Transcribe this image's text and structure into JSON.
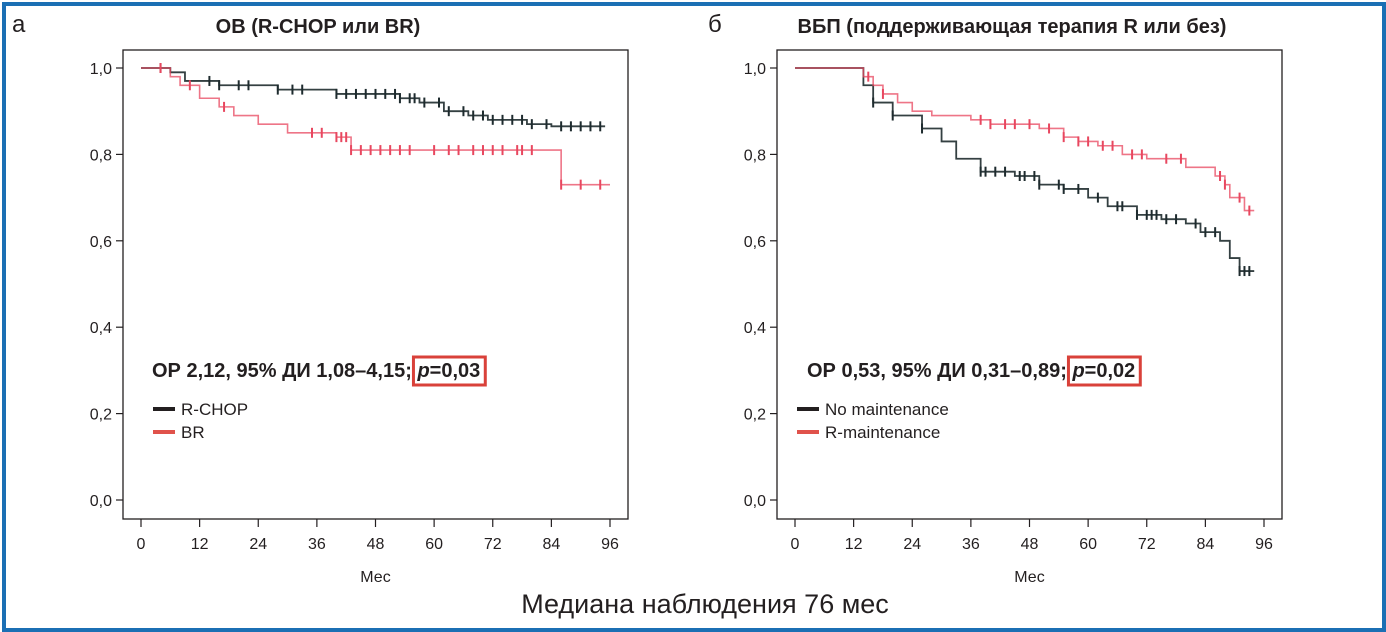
{
  "footer": "Медиана наблюдения 76 мес",
  "colors": {
    "frame": "#1b6fb4",
    "series_black": "#1e2b2e",
    "series_red": "#e8475f",
    "pbox": "#d9413a",
    "legend_black": "#231f20",
    "legend_red": "#e0524b"
  },
  "chart_data": [
    {
      "type": "line",
      "subtype": "kaplan-meier",
      "panel_letter": "а",
      "title": "ОВ (R-CHOP или BR)",
      "xlabel": "Мес",
      "ylabel": "",
      "xlim": [
        0,
        96
      ],
      "ylim": [
        0,
        1
      ],
      "x_ticks": [
        0,
        12,
        24,
        36,
        48,
        60,
        72,
        84,
        96
      ],
      "x_tick_labels": [
        "0",
        "12",
        "24",
        "36",
        "48",
        "60",
        "72",
        "84",
        "96"
      ],
      "y_ticks": [
        0,
        0.2,
        0.4,
        0.6,
        0.8,
        1.0
      ],
      "y_tick_labels": [
        "0,0",
        "0,2",
        "0,4",
        "0,6",
        "0,8",
        "1,0"
      ],
      "stat_prefix": "ОР 2,12, 95% ДИ 1,08–4,15; ",
      "stat_p_symbol": "p",
      "stat_p_value": "=0,03",
      "legend_position": "bottom-left",
      "series": [
        {
          "name": "R-CHOP",
          "color_key": "series_black",
          "x": [
            0,
            6,
            9,
            16,
            28,
            40,
            53,
            57,
            62,
            67,
            71,
            79,
            84,
            95
          ],
          "y": [
            1.0,
            0.99,
            0.97,
            0.96,
            0.95,
            0.94,
            0.93,
            0.92,
            0.9,
            0.89,
            0.88,
            0.87,
            0.865,
            0.865
          ],
          "censor_x": [
            4,
            14,
            16,
            20,
            22,
            28,
            31,
            33,
            40,
            42,
            44,
            46,
            48,
            50,
            52,
            53,
            55,
            56,
            58,
            61,
            63,
            66,
            68,
            70,
            72,
            74,
            76,
            78,
            80,
            83,
            86,
            88,
            90,
            92,
            94
          ]
        },
        {
          "name": "BR",
          "color_key": "series_red",
          "x": [
            0,
            6,
            8,
            12,
            16,
            19,
            24,
            30,
            40,
            43,
            86,
            96
          ],
          "y": [
            1.0,
            0.98,
            0.96,
            0.93,
            0.91,
            0.89,
            0.87,
            0.85,
            0.84,
            0.81,
            0.73,
            0.73
          ],
          "censor_x": [
            4,
            10,
            17,
            35,
            37,
            40,
            41,
            42,
            43,
            45,
            47,
            49,
            51,
            53,
            55,
            60,
            63,
            65,
            68,
            70,
            72,
            74,
            77,
            78,
            80,
            86,
            90,
            94
          ]
        }
      ]
    },
    {
      "type": "line",
      "subtype": "kaplan-meier",
      "panel_letter": "б",
      "title": "ВБП (поддерживающая терапия R или без)",
      "xlabel": "Мес",
      "ylabel": "",
      "xlim": [
        0,
        96
      ],
      "ylim": [
        0,
        1
      ],
      "x_ticks": [
        0,
        12,
        24,
        36,
        48,
        60,
        72,
        84,
        96
      ],
      "x_tick_labels": [
        "0",
        "12",
        "24",
        "36",
        "48",
        "60",
        "72",
        "84",
        "96"
      ],
      "y_ticks": [
        0,
        0.2,
        0.4,
        0.6,
        0.8,
        1.0
      ],
      "y_tick_labels": [
        "0,0",
        "0,2",
        "0,4",
        "0,6",
        "0,8",
        "1,0"
      ],
      "stat_prefix": "ОР 0,53, 95% ДИ 0,31–0,89; ",
      "stat_p_symbol": "p",
      "stat_p_value": "=0,02",
      "legend_position": "bottom-left",
      "series": [
        {
          "name": "No maintenance",
          "color_key": "series_black",
          "x": [
            0,
            12,
            14,
            16,
            20,
            26,
            30,
            33,
            38,
            45,
            50,
            55,
            60,
            64,
            70,
            75,
            80,
            83,
            87,
            89,
            91,
            94
          ],
          "y": [
            1.0,
            1.0,
            0.96,
            0.92,
            0.89,
            0.86,
            0.83,
            0.79,
            0.76,
            0.75,
            0.73,
            0.72,
            0.7,
            0.68,
            0.66,
            0.65,
            0.64,
            0.62,
            0.6,
            0.56,
            0.53,
            0.53
          ],
          "censor_x": [
            16,
            20,
            26,
            38,
            39,
            41,
            43,
            46,
            47,
            49,
            50,
            54,
            55,
            58,
            62,
            66,
            67,
            70,
            72,
            73,
            74,
            76,
            78,
            82,
            84,
            86,
            91,
            92,
            93
          ]
        },
        {
          "name": "R-maintenance",
          "color_key": "series_red",
          "x": [
            0,
            12,
            14,
            16,
            18,
            21,
            24,
            28,
            36,
            40,
            50,
            55,
            58,
            62,
            67,
            72,
            80,
            86,
            88,
            89,
            92,
            94
          ],
          "y": [
            1.0,
            1.0,
            0.98,
            0.96,
            0.94,
            0.92,
            0.9,
            0.89,
            0.88,
            0.87,
            0.86,
            0.84,
            0.83,
            0.82,
            0.8,
            0.79,
            0.77,
            0.75,
            0.73,
            0.7,
            0.67,
            0.67
          ],
          "censor_x": [
            15,
            18,
            38,
            40,
            43,
            45,
            48,
            52,
            55,
            58,
            60,
            63,
            65,
            69,
            71,
            76,
            79,
            87,
            88,
            91,
            93
          ]
        }
      ]
    }
  ]
}
